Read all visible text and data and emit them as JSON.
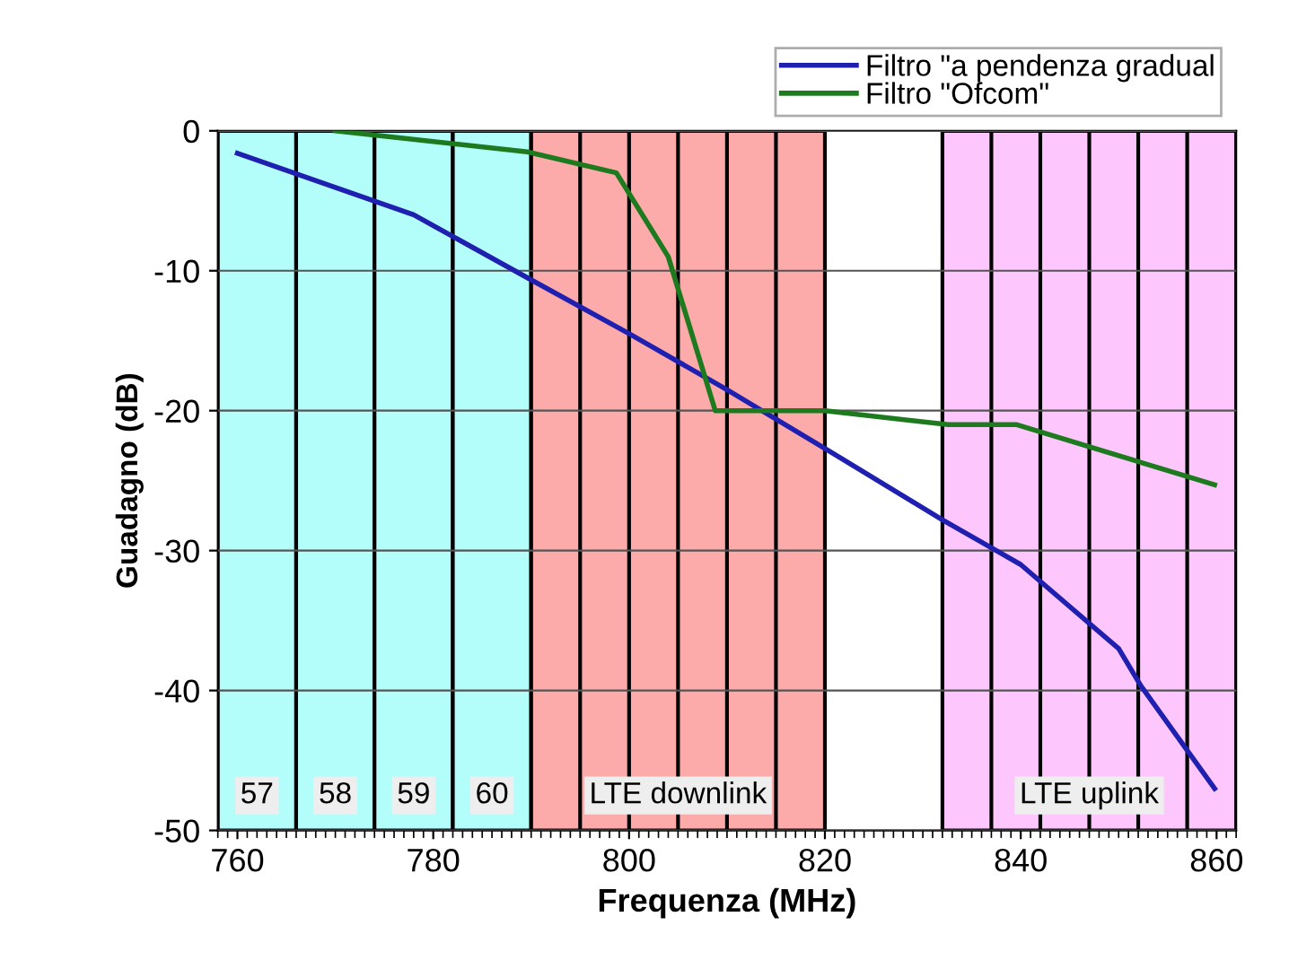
{
  "chart_data": {
    "type": "line",
    "xlabel": "Frequenza (MHz)",
    "ylabel": "Guadagno (dB)",
    "xlim": [
      758,
      862
    ],
    "xticks": [
      760,
      780,
      800,
      820,
      840,
      860
    ],
    "ylim": [
      -50,
      0
    ],
    "yticks": [
      -50,
      -40,
      -30,
      -20,
      -10,
      0
    ],
    "grid": "y",
    "legend": "top right",
    "line_style": "solid",
    "marker": "none",
    "series": [
      {
        "name": "Filtro \"a pendenza gradual",
        "color": "#2020b0",
        "x": [
          760,
          778,
          789.6,
          800,
          810,
          820,
          832,
          837.5,
          840,
          850,
          852.3,
          859.8
        ],
        "values": [
          -1.6,
          -6,
          -10.5,
          -14.5,
          -18.5,
          -22.7,
          -27.8,
          -30,
          -31,
          -37,
          -39.7,
          -47
        ]
      },
      {
        "name": "Filtro \"Ofcom\"",
        "color": "#1e7a1e",
        "x": [
          770,
          789.6,
          798.7,
          804,
          808.8,
          820,
          832.6,
          839.6,
          859.8
        ],
        "values": [
          0,
          -1.5,
          -3,
          -9,
          -20,
          -20,
          -21,
          -21,
          -25.3
        ]
      }
    ],
    "bands": [
      {
        "axis": "x",
        "from": 758,
        "to": 766,
        "label": "57",
        "color": "#b3fdfb"
      },
      {
        "axis": "x",
        "from": 766,
        "to": 774,
        "label": "58",
        "color": "#b3fdfb"
      },
      {
        "axis": "x",
        "from": 774,
        "to": 782,
        "label": "59",
        "color": "#b3fdfb"
      },
      {
        "axis": "x",
        "from": 782,
        "to": 790,
        "label": "60",
        "color": "#b3fdfb"
      },
      {
        "axis": "x",
        "from": 790,
        "to": 820,
        "label": "LTE downlink",
        "color": "#fdaaaa"
      },
      {
        "axis": "x",
        "from": 832,
        "to": 862,
        "label": "LTE uplink",
        "color": "#fdc7fd"
      }
    ],
    "ref_lines": [
      {
        "axis": "x",
        "value": 795,
        "color": "#000000"
      },
      {
        "axis": "x",
        "value": 800,
        "color": "#000000"
      },
      {
        "axis": "x",
        "value": 805,
        "color": "#000000"
      },
      {
        "axis": "x",
        "value": 810,
        "color": "#000000"
      },
      {
        "axis": "x",
        "value": 815,
        "color": "#000000"
      },
      {
        "axis": "x",
        "value": 837,
        "color": "#000000"
      },
      {
        "axis": "x",
        "value": 842,
        "color": "#000000"
      },
      {
        "axis": "x",
        "value": 847,
        "color": "#000000"
      },
      {
        "axis": "x",
        "value": 852,
        "color": "#000000"
      },
      {
        "axis": "x",
        "value": 857,
        "color": "#000000"
      }
    ]
  }
}
